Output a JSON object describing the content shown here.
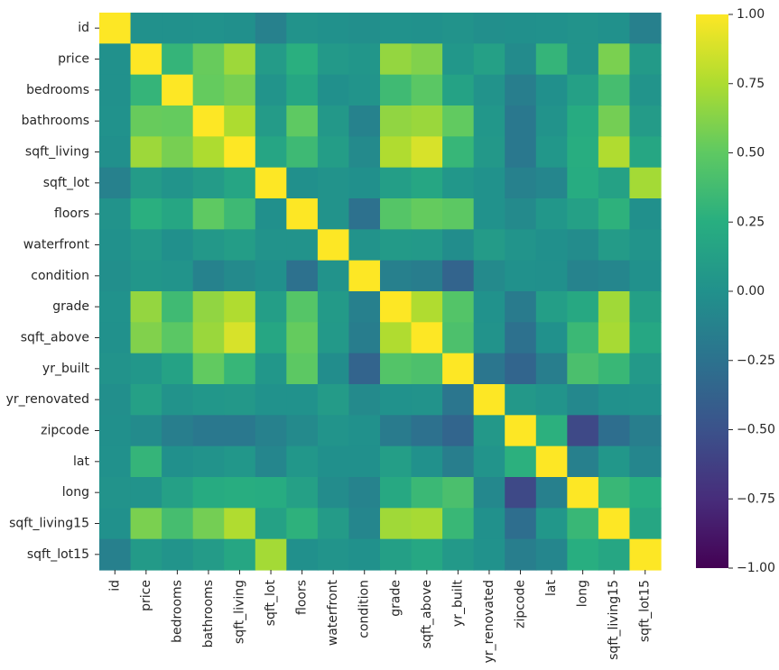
{
  "chart_data": {
    "type": "heatmap",
    "title": "",
    "xlabel": "",
    "ylabel": "",
    "colormap": "viridis",
    "labels": [
      "id",
      "price",
      "bedrooms",
      "bathrooms",
      "sqft_living",
      "sqft_lot",
      "floors",
      "waterfront",
      "condition",
      "grade",
      "sqft_above",
      "yr_built",
      "yr_renovated",
      "zipcode",
      "lat",
      "long",
      "sqft_living15",
      "sqft_lot15"
    ],
    "values": [
      [
        1.0,
        0.0,
        0.0,
        0.01,
        -0.01,
        -0.13,
        0.02,
        0.0,
        -0.02,
        0.01,
        0.0,
        0.02,
        -0.02,
        -0.01,
        0.0,
        0.02,
        0.0,
        -0.14
      ],
      [
        0.0,
        1.0,
        0.31,
        0.53,
        0.7,
        0.09,
        0.26,
        0.07,
        0.04,
        0.67,
        0.61,
        0.05,
        0.13,
        -0.05,
        0.31,
        0.02,
        0.59,
        0.08
      ],
      [
        0.0,
        0.31,
        1.0,
        0.52,
        0.58,
        0.03,
        0.18,
        -0.01,
        0.03,
        0.36,
        0.48,
        0.15,
        0.02,
        -0.15,
        -0.01,
        0.13,
        0.39,
        0.03
      ],
      [
        0.01,
        0.53,
        0.52,
        1.0,
        0.75,
        0.09,
        0.5,
        0.06,
        -0.12,
        0.66,
        0.69,
        0.51,
        0.05,
        -0.2,
        0.02,
        0.22,
        0.57,
        0.09
      ],
      [
        -0.01,
        0.7,
        0.58,
        0.75,
        1.0,
        0.17,
        0.35,
        0.1,
        -0.06,
        0.76,
        0.88,
        0.32,
        0.06,
        -0.2,
        0.05,
        0.24,
        0.76,
        0.18
      ],
      [
        -0.13,
        0.09,
        0.03,
        0.09,
        0.17,
        1.0,
        -0.01,
        0.02,
        -0.01,
        0.11,
        0.18,
        0.05,
        0.01,
        -0.13,
        -0.09,
        0.23,
        0.14,
        0.72
      ],
      [
        0.02,
        0.26,
        0.18,
        0.5,
        0.35,
        -0.01,
        1.0,
        0.02,
        -0.26,
        0.46,
        0.52,
        0.49,
        0.01,
        -0.06,
        0.05,
        0.13,
        0.28,
        -0.01
      ],
      [
        0.0,
        0.07,
        -0.01,
        0.06,
        0.1,
        0.02,
        0.02,
        1.0,
        0.02,
        0.08,
        0.07,
        -0.03,
        0.09,
        0.03,
        -0.01,
        -0.04,
        0.09,
        0.03
      ],
      [
        -0.02,
        0.04,
        0.03,
        -0.12,
        -0.06,
        -0.01,
        -0.26,
        0.02,
        1.0,
        -0.14,
        -0.16,
        -0.36,
        -0.06,
        0.0,
        -0.01,
        -0.11,
        -0.09,
        -0.0
      ],
      [
        0.01,
        0.67,
        0.36,
        0.66,
        0.76,
        0.11,
        0.46,
        0.08,
        -0.14,
        1.0,
        0.76,
        0.45,
        0.01,
        -0.18,
        0.11,
        0.2,
        0.71,
        0.12
      ],
      [
        0.0,
        0.61,
        0.48,
        0.69,
        0.88,
        0.18,
        0.52,
        0.07,
        -0.16,
        0.76,
        1.0,
        0.42,
        0.02,
        -0.26,
        -0.0,
        0.34,
        0.73,
        0.19
      ],
      [
        0.02,
        0.05,
        0.15,
        0.51,
        0.32,
        0.05,
        0.49,
        -0.03,
        -0.36,
        0.45,
        0.42,
        1.0,
        -0.22,
        -0.35,
        -0.15,
        0.41,
        0.33,
        0.07
      ],
      [
        -0.02,
        0.13,
        0.02,
        0.05,
        0.06,
        0.01,
        0.01,
        0.09,
        -0.06,
        0.01,
        0.02,
        -0.22,
        1.0,
        0.06,
        0.03,
        -0.07,
        -0.0,
        0.01
      ],
      [
        -0.01,
        -0.05,
        -0.15,
        -0.2,
        -0.2,
        -0.13,
        -0.06,
        0.03,
        0.0,
        -0.18,
        -0.26,
        -0.35,
        0.06,
        1.0,
        0.27,
        -0.56,
        -0.28,
        -0.15
      ],
      [
        0.0,
        0.31,
        -0.01,
        0.02,
        0.05,
        -0.09,
        0.05,
        -0.01,
        -0.01,
        0.11,
        -0.0,
        -0.15,
        0.03,
        0.27,
        1.0,
        -0.14,
        0.05,
        -0.09
      ],
      [
        0.02,
        0.02,
        0.13,
        0.22,
        0.24,
        0.23,
        0.13,
        -0.04,
        -0.11,
        0.2,
        0.34,
        0.41,
        -0.07,
        -0.56,
        -0.14,
        1.0,
        0.33,
        0.25
      ],
      [
        0.0,
        0.59,
        0.39,
        0.57,
        0.76,
        0.14,
        0.28,
        0.09,
        -0.09,
        0.71,
        0.73,
        0.33,
        -0.0,
        -0.28,
        0.05,
        0.33,
        1.0,
        0.18
      ],
      [
        -0.14,
        0.08,
        0.03,
        0.09,
        0.18,
        0.72,
        -0.01,
        0.03,
        -0.0,
        0.12,
        0.19,
        0.07,
        0.01,
        -0.15,
        -0.09,
        0.25,
        0.18,
        1.0
      ]
    ],
    "colorbar": {
      "vmin": -1.0,
      "vmax": 1.0,
      "ticks": [
        -1.0,
        -0.75,
        -0.5,
        -0.25,
        0.0,
        0.25,
        0.5,
        0.75,
        1.0
      ],
      "tick_labels": [
        "−1.00",
        "−0.75",
        "−0.50",
        "−0.25",
        "0.00",
        "0.25",
        "0.50",
        "0.75",
        "1.00"
      ]
    },
    "grid": false,
    "legend": "colorbar-right"
  }
}
